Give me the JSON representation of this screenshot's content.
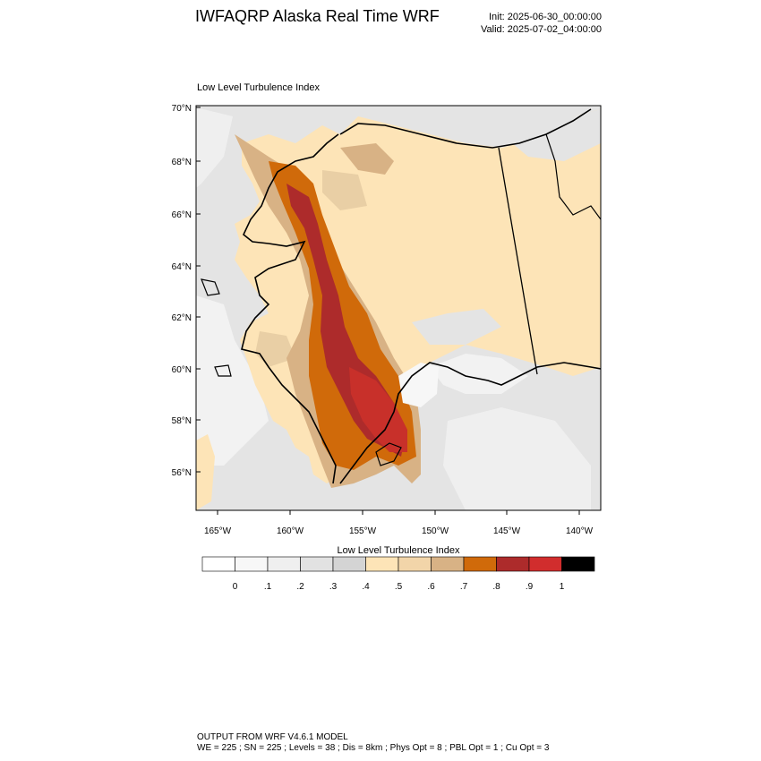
{
  "header": {
    "title": "IWFAQRP Alaska Real Time WRF",
    "init": "Init: 2025-06-30_00:00:00",
    "valid": "Valid: 2025-07-02_04:00:00"
  },
  "plot": {
    "title": "Low Level Turbulence Index",
    "lat_labels": [
      "70°N",
      "68°N",
      "66°N",
      "64°N",
      "62°N",
      "60°N",
      "58°N",
      "56°N"
    ],
    "lon_labels": [
      "165°W",
      "160°W",
      "155°W",
      "150°W",
      "145°W",
      "140°W"
    ]
  },
  "colorbar": {
    "title": "Low Level Turbulence Index",
    "labels": [
      "0",
      ".1",
      ".2",
      ".3",
      ".4",
      ".5",
      ".6",
      ".7",
      ".8",
      ".9",
      "1"
    ],
    "colors": [
      "#ffffff",
      "#f7f7f7",
      "#efefef",
      "#e2e2e2",
      "#d4d4d4",
      "#fde4b7",
      "#f2d5a9",
      "#d8b285",
      "#d06a0a",
      "#ad2b2b",
      "#d12d2d",
      "#000000"
    ]
  },
  "map_colors": {
    "land_light": "#fde4b7",
    "ocean_light": "#e4e4e4",
    "ocean_lighter": "#efefef",
    "tan": "#d8b285",
    "orange": "#d06a0a",
    "darkred": "#ad2b2b",
    "red": "#c8302a",
    "white_patch": "#f7f7f7"
  },
  "footer": {
    "line1": "OUTPUT FROM WRF V4.6.1 MODEL",
    "line2": "WE = 225 ; SN = 225 ; Levels = 38 ; Dis = 8km ; Phys Opt = 8 ; PBL Opt = 1 ; Cu Opt = 3"
  }
}
